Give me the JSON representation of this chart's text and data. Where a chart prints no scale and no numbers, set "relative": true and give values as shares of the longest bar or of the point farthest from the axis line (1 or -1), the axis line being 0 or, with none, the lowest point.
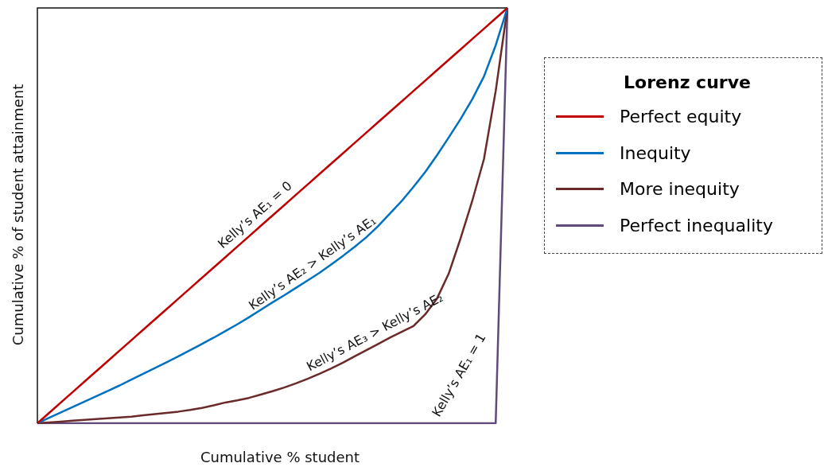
{
  "chart_data": {
    "type": "line",
    "relative": true,
    "grid": false,
    "legend": "right",
    "legend_title": "Lorenz curve",
    "xlabel": "Cumulative % student",
    "ylabel": "Cumulative %  of student attainment",
    "categories": [
      null,
      null,
      null,
      null,
      null,
      null,
      null,
      null,
      null,
      null,
      null,
      null,
      null,
      null,
      null,
      null,
      null,
      null,
      null,
      null,
      null,
      null,
      null,
      null,
      null,
      null,
      null,
      null,
      null,
      null,
      null,
      null,
      null,
      null,
      null,
      null,
      null,
      null,
      null,
      null,
      null
    ],
    "series": [
      {
        "name": "Perfect equity",
        "color": "#c00000",
        "values": [
          0,
          0.025,
          0.05,
          0.075,
          0.1,
          0.125,
          0.15,
          0.175,
          0.2,
          0.225,
          0.25,
          0.275,
          0.3,
          0.325,
          0.35,
          0.375,
          0.4,
          0.425,
          0.45,
          0.475,
          0.5,
          0.525,
          0.55,
          0.575,
          0.6,
          0.625,
          0.65,
          0.675,
          0.7,
          0.725,
          0.75,
          0.775,
          0.8,
          0.825,
          0.85,
          0.875,
          0.9,
          0.925,
          0.95,
          0.975,
          1
        ]
      },
      {
        "name": "Inequity",
        "color": "#0070c0",
        "values": [
          0,
          0.013,
          0.026,
          0.039,
          0.052,
          0.065,
          0.078,
          0.091,
          0.105,
          0.119,
          0.133,
          0.147,
          0.161,
          0.176,
          0.191,
          0.206,
          0.222,
          0.238,
          0.255,
          0.273,
          0.291,
          0.308,
          0.326,
          0.344,
          0.362,
          0.382,
          0.403,
          0.425,
          0.448,
          0.475,
          0.505,
          0.535,
          0.569,
          0.605,
          0.645,
          0.688,
          0.732,
          0.78,
          0.835,
          0.91,
          1
        ]
      },
      {
        "name": "More inequity",
        "color": "#6b2a2a",
        "values": [
          0,
          0.002,
          0.004,
          0.006,
          0.008,
          0.01,
          0.012,
          0.014,
          0.016,
          0.019,
          0.022,
          0.025,
          0.028,
          0.032,
          0.037,
          0.043,
          0.05,
          0.055,
          0.061,
          0.069,
          0.077,
          0.086,
          0.096,
          0.107,
          0.119,
          0.132,
          0.146,
          0.161,
          0.176,
          0.191,
          0.206,
          0.22,
          0.234,
          0.262,
          0.3,
          0.36,
          0.444,
          0.535,
          0.636,
          0.8,
          1
        ]
      },
      {
        "name": "Perfect inequality",
        "color": "#604a7b",
        "values": [
          0,
          0,
          0,
          0,
          0,
          0,
          0,
          0,
          0,
          0,
          0,
          0,
          0,
          0,
          0,
          0,
          0,
          0,
          0,
          0,
          0,
          0,
          0,
          0,
          0,
          0,
          0,
          0,
          0,
          0,
          0,
          0,
          0,
          0,
          0,
          0,
          0,
          0,
          0,
          0,
          1
        ]
      }
    ],
    "annotations": [
      "Kelly’s AE₁ = 0",
      "Kelly’s AE₂ > Kelly’s AE₁",
      "Kelly’s AE₃ > Kelly’s AE₂",
      "Kelly’s AE₁ = 1"
    ]
  }
}
